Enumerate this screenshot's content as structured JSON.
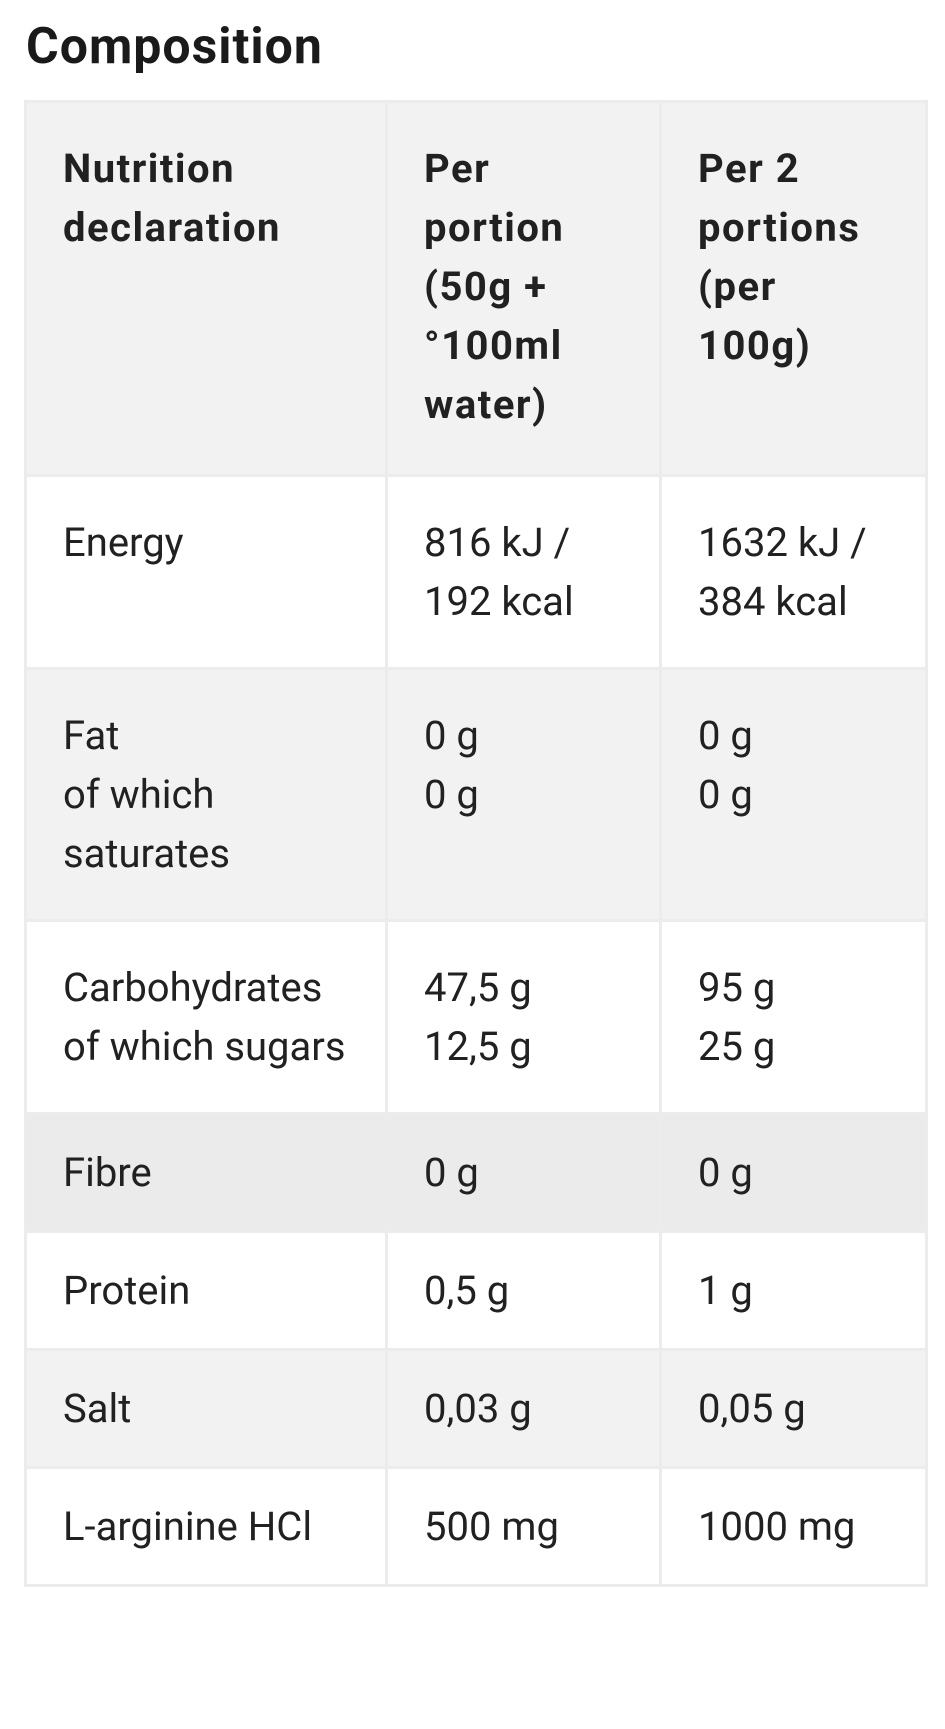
{
  "title": "Composition",
  "table": {
    "header": [
      [
        "Nutrition declaration"
      ],
      [
        "Per portion (50g + °100ml water)"
      ],
      [
        "Per 2 portions (per 100g)"
      ]
    ],
    "rows": [
      [
        [
          "Energy"
        ],
        [
          "816 kJ / 192 kcal"
        ],
        [
          "1632 kJ / 384 kcal"
        ]
      ],
      [
        [
          "Fat",
          "of which saturates"
        ],
        [
          "0 g",
          "0 g"
        ],
        [
          "0 g",
          "0 g"
        ]
      ],
      [
        [
          "Carbohydrates",
          "of which sugars"
        ],
        [
          "47,5 g",
          "12,5 g"
        ],
        [
          "95 g",
          "25 g"
        ]
      ],
      [
        [
          "Fibre"
        ],
        [
          "0 g"
        ],
        [
          "0 g"
        ]
      ],
      [
        [
          "Protein"
        ],
        [
          "0,5 g"
        ],
        [
          "1 g"
        ]
      ],
      [
        [
          "Salt"
        ],
        [
          "0,03 g"
        ],
        [
          "0,05 g"
        ]
      ],
      [
        [
          "L-arginine HCl"
        ],
        [
          "500 mg"
        ],
        [
          "1000 mg"
        ]
      ]
    ]
  }
}
